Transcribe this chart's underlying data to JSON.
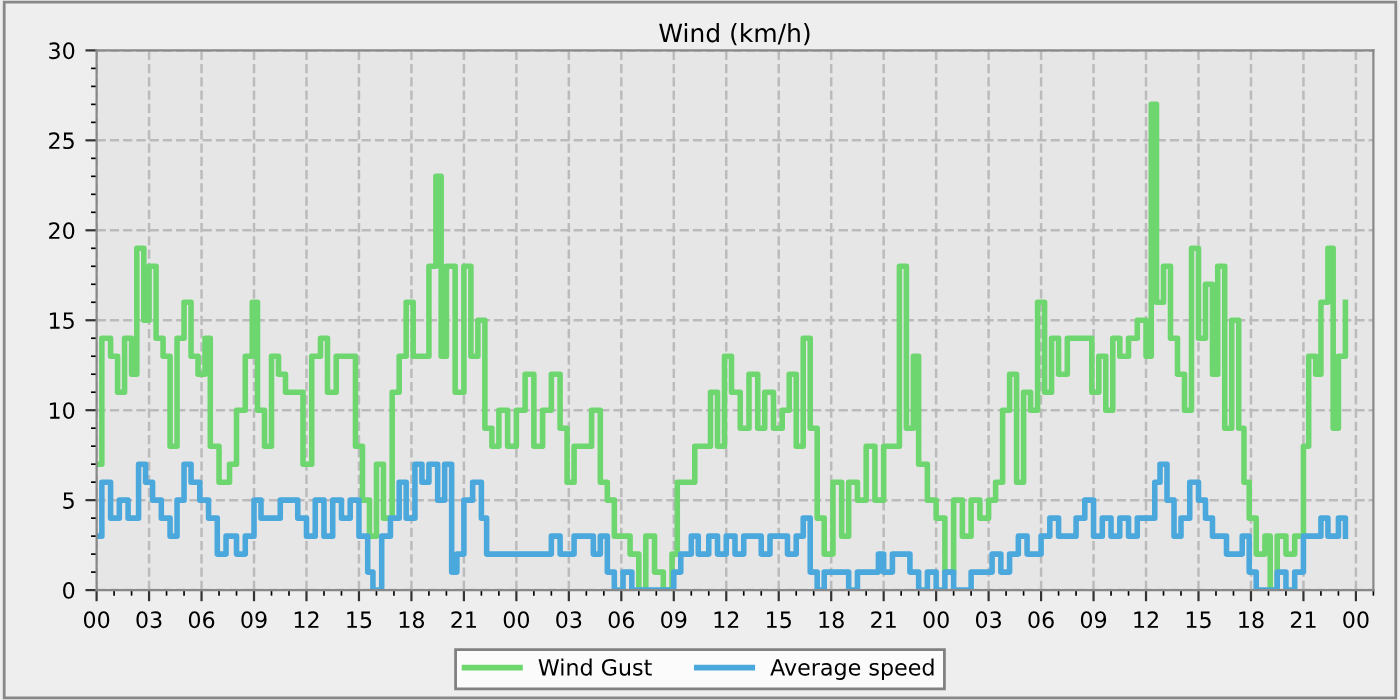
{
  "chart_data": {
    "type": "step",
    "title": "Wind (km/h)",
    "grid": true,
    "legend": "bottom",
    "marker": "none",
    "line_style": "solid",
    "xlim": [
      0,
      73
    ],
    "ylim": [
      0,
      30
    ],
    "xticks": [
      {
        "value": 0,
        "label": "00"
      },
      {
        "value": 3,
        "label": "03"
      },
      {
        "value": 6,
        "label": "06"
      },
      {
        "value": 9,
        "label": "09"
      },
      {
        "value": 12,
        "label": "12"
      },
      {
        "value": 15,
        "label": "15"
      },
      {
        "value": 18,
        "label": "18"
      },
      {
        "value": 21,
        "label": "21"
      },
      {
        "value": 24,
        "label": "00"
      },
      {
        "value": 27,
        "label": "03"
      },
      {
        "value": 30,
        "label": "06"
      },
      {
        "value": 33,
        "label": "09"
      },
      {
        "value": 36,
        "label": "12"
      },
      {
        "value": 39,
        "label": "15"
      },
      {
        "value": 42,
        "label": "18"
      },
      {
        "value": 45,
        "label": "21"
      },
      {
        "value": 48,
        "label": "00"
      },
      {
        "value": 51,
        "label": "03"
      },
      {
        "value": 54,
        "label": "06"
      },
      {
        "value": 57,
        "label": "09"
      },
      {
        "value": 60,
        "label": "12"
      },
      {
        "value": 63,
        "label": "15"
      },
      {
        "value": 66,
        "label": "18"
      },
      {
        "value": 69,
        "label": "21"
      },
      {
        "value": 72,
        "label": "00"
      }
    ],
    "yticks": [
      0,
      5,
      10,
      15,
      20,
      25,
      30
    ],
    "series": [
      {
        "name": "Wind Gust",
        "color": "#6ed66e",
        "x": [
          0,
          0.3,
          0.8,
          1.2,
          1.6,
          2,
          2.3,
          2.7,
          3,
          3.4,
          3.8,
          4.2,
          4.6,
          5,
          5.4,
          5.8,
          6.2,
          6.5,
          7,
          7.6,
          8,
          8.5,
          8.9,
          9.2,
          9.6,
          10,
          10.4,
          10.8,
          11.3,
          11.8,
          12.3,
          12.8,
          13.2,
          13.7,
          14.3,
          14.8,
          15.2,
          15.6,
          16,
          16.4,
          16.9,
          17.3,
          17.7,
          18.1,
          18.6,
          19,
          19.4,
          19.7,
          20,
          20.5,
          21,
          21.4,
          21.8,
          22.2,
          22.6,
          23,
          23.5,
          24,
          24.5,
          25,
          25.5,
          26,
          26.5,
          26.9,
          27.3,
          27.8,
          28.3,
          28.8,
          29.2,
          29.6,
          30,
          30.5,
          31,
          31.4,
          31.9,
          32.4,
          32.9,
          33.2,
          33.7,
          34.2,
          34.7,
          35.1,
          35.5,
          35.9,
          36.3,
          36.8,
          37.3,
          37.8,
          38.2,
          38.7,
          39.2,
          39.6,
          40,
          40.4,
          40.8,
          41.2,
          41.6,
          42.1,
          42.6,
          43,
          43.5,
          44,
          44.5,
          45,
          45.5,
          45.9,
          46.3,
          46.7,
          47,
          47.5,
          48,
          48.5,
          49,
          49.5,
          50,
          50.5,
          51,
          51.4,
          51.8,
          52.2,
          52.6,
          53,
          53.4,
          53.8,
          54.2,
          54.6,
          55,
          55.5,
          56,
          56.5,
          56.9,
          57.3,
          57.7,
          58.1,
          58.5,
          59,
          59.5,
          60,
          60.3,
          60.6,
          61,
          61.4,
          61.8,
          62.2,
          62.6,
          63,
          63.4,
          63.8,
          64.1,
          64.5,
          64.9,
          65.3,
          65.6,
          65.9,
          66.3,
          66.8,
          67.1,
          67.5,
          68,
          68.5,
          69,
          69.3,
          69.7,
          70,
          70.4,
          70.7,
          71,
          71.4
        ],
        "values": [
          7,
          14,
          13,
          11,
          14,
          12,
          19,
          15,
          18,
          14,
          13,
          8,
          14,
          16,
          13,
          12,
          14,
          8,
          6,
          7,
          10,
          13,
          16,
          10,
          8,
          13,
          12,
          11,
          11,
          7,
          13,
          14,
          11,
          13,
          13,
          8,
          5,
          3,
          7,
          4,
          11,
          13,
          16,
          13,
          13,
          18,
          23,
          13,
          18,
          11,
          18,
          13,
          15,
          9,
          8,
          10,
          8,
          10,
          12,
          8,
          10,
          12,
          9,
          6,
          8,
          8,
          10,
          6,
          5,
          3,
          3,
          2,
          0,
          3,
          1,
          0,
          2,
          6,
          6,
          8,
          8,
          11,
          8,
          13,
          11,
          9,
          12,
          9,
          11,
          9,
          10,
          12,
          8,
          14,
          9,
          4,
          2,
          6,
          3,
          6,
          5,
          8,
          5,
          8,
          8,
          18,
          9,
          13,
          7,
          5,
          4,
          1,
          5,
          3,
          5,
          4,
          5,
          6,
          10,
          12,
          6,
          11,
          10,
          16,
          11,
          14,
          12,
          14,
          14,
          14,
          11,
          13,
          10,
          14,
          13,
          14,
          15,
          13,
          27,
          16,
          18,
          14,
          12,
          10,
          19,
          14,
          17,
          12,
          18,
          9,
          15,
          9,
          6,
          4,
          2,
          3,
          0,
          3,
          2,
          3,
          8,
          13,
          12,
          16,
          19,
          9,
          13,
          16
        ]
      },
      {
        "name": "Average speed",
        "color": "#4aa8dc",
        "x": [
          0,
          0.3,
          0.8,
          1.3,
          1.8,
          2.4,
          2.8,
          3.2,
          3.7,
          4.2,
          4.6,
          5,
          5.4,
          5.9,
          6.4,
          6.9,
          7.4,
          8,
          8.5,
          9,
          9.4,
          10,
          10.5,
          11,
          11.5,
          12,
          12.5,
          13,
          13.5,
          14,
          14.5,
          15,
          15.5,
          15.8,
          16.3,
          16.8,
          17.3,
          17.7,
          18.2,
          18.6,
          19,
          19.5,
          19.9,
          20.3,
          20.6,
          21,
          21.5,
          22,
          22.3,
          23,
          24,
          25,
          26,
          26.5,
          27.3,
          27.8,
          28.4,
          28.8,
          29.2,
          29.6,
          30.1,
          30.6,
          31.5,
          32.5,
          33,
          33.4,
          34,
          34.4,
          35,
          35.5,
          36,
          36.5,
          37,
          37.5,
          38,
          38.5,
          39,
          39.5,
          40,
          40.4,
          40.8,
          41.2,
          41.6,
          42.5,
          43,
          43.5,
          44.2,
          44.7,
          45,
          45.5,
          46,
          46.5,
          47,
          47.5,
          48,
          48.5,
          49,
          50,
          50.5,
          51.2,
          51.7,
          52.2,
          52.7,
          53.2,
          54,
          54.5,
          55,
          55.5,
          56,
          56.5,
          57,
          57.5,
          58,
          58.5,
          59,
          59.5,
          60,
          60.5,
          60.8,
          61.2,
          61.6,
          62,
          62.5,
          63,
          63.4,
          63.8,
          64.2,
          64.6,
          65,
          65.5,
          65.9,
          66.3,
          67,
          67.5,
          68,
          68.5,
          69,
          69.5,
          70,
          70.4,
          70.8,
          71,
          71.4
        ],
        "values": [
          3,
          6,
          4,
          5,
          4,
          7,
          6,
          5,
          4,
          3,
          5,
          7,
          6,
          5,
          4,
          2,
          3,
          2,
          3,
          5,
          4,
          4,
          5,
          5,
          4,
          3,
          5,
          3,
          5,
          4,
          5,
          3,
          1,
          0,
          3,
          4,
          6,
          4,
          7,
          6,
          7,
          5,
          7,
          1,
          2,
          5,
          6,
          4,
          2,
          2,
          2,
          2,
          3,
          2,
          3,
          3,
          2,
          3,
          1,
          0,
          1,
          0,
          0,
          0,
          1,
          2,
          3,
          2,
          3,
          2,
          3,
          2,
          3,
          3,
          2,
          3,
          3,
          2,
          3,
          4,
          1,
          0,
          1,
          1,
          0,
          1,
          1,
          2,
          1,
          2,
          2,
          1,
          0,
          1,
          0,
          1,
          0,
          1,
          1,
          2,
          1,
          2,
          3,
          2,
          3,
          4,
          3,
          3,
          4,
          5,
          3,
          4,
          3,
          4,
          3,
          4,
          4,
          6,
          7,
          5,
          3,
          4,
          6,
          5,
          4,
          3,
          3,
          2,
          2,
          3,
          1,
          0,
          0,
          1,
          0,
          1,
          3,
          3,
          4,
          3,
          3,
          4,
          3
        ]
      }
    ]
  }
}
